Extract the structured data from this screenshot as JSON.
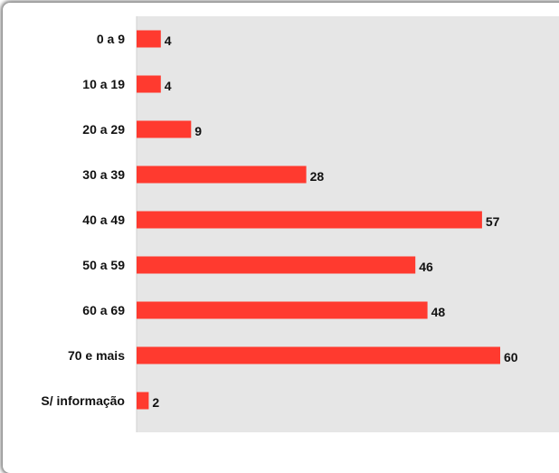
{
  "colors": {
    "bar": "#ff3a2f",
    "plot_background": "#e6e6e6",
    "card_background": "#ffffff"
  },
  "chart_data": {
    "type": "bar",
    "orientation": "horizontal",
    "categories": [
      "0 a 9",
      "10 a 19",
      "20 a 29",
      "30 a 39",
      "40 a 49",
      "50 a 59",
      "60 a 69",
      "70 e mais",
      "S/ informação"
    ],
    "values": [
      4,
      4,
      9,
      28,
      57,
      46,
      48,
      60,
      2
    ],
    "title": "",
    "xlabel": "",
    "ylabel": "",
    "xlim": [
      0,
      67
    ],
    "grid": false,
    "legend": "none",
    "data_labels": true
  }
}
